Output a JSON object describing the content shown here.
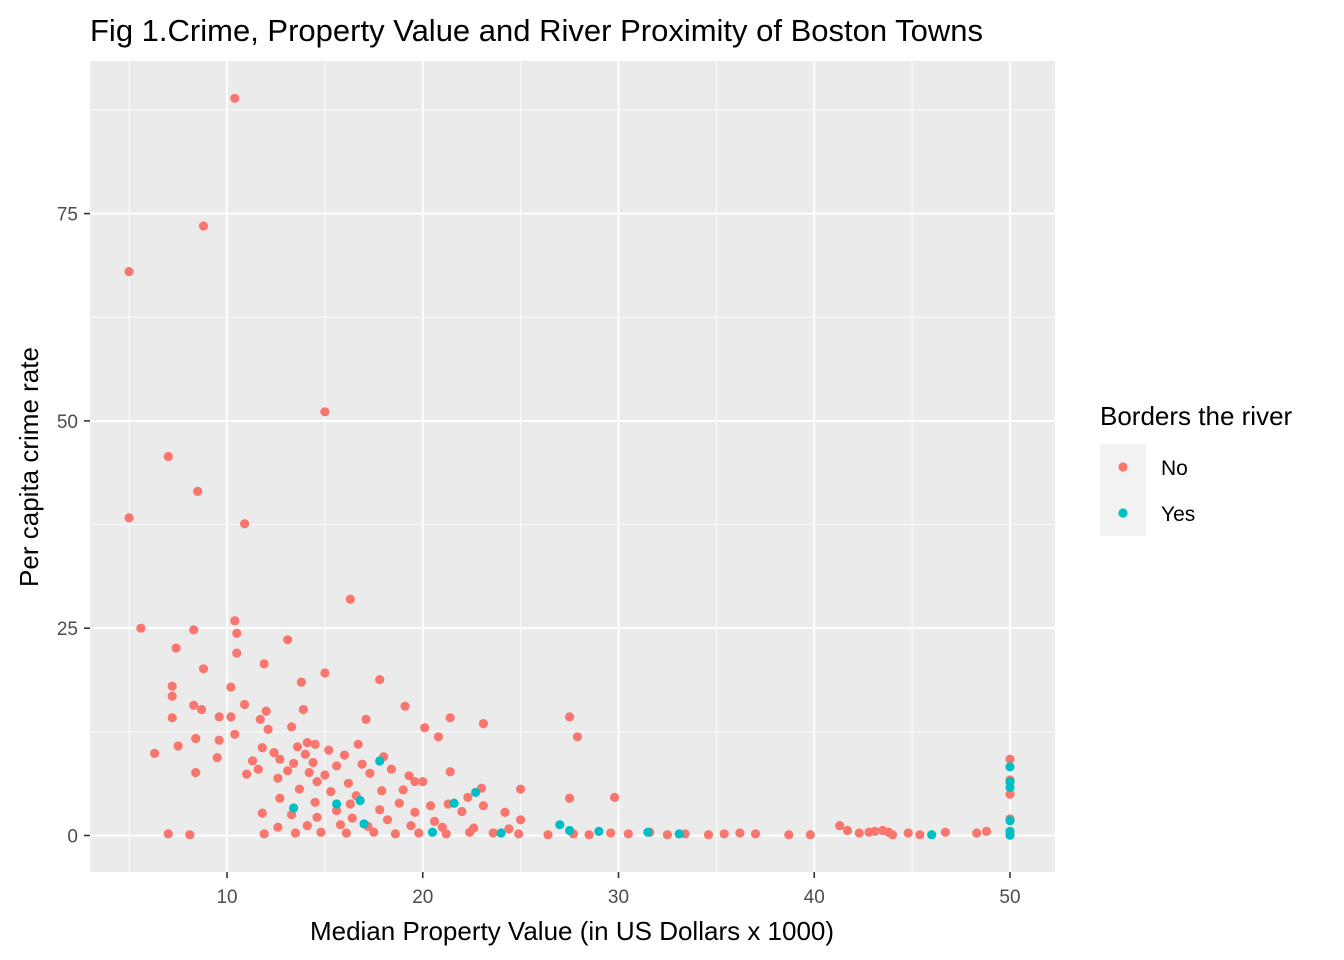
{
  "chart_data": {
    "type": "scatter",
    "title": "Fig 1.Crime, Property Value and River Proximity of Boston Towns",
    "xlabel": "Median Property Value (in US Dollars x 1000)",
    "ylabel": "Per capita crime rate",
    "xlim": [
      3.0,
      52.3
    ],
    "ylim": [
      -4.4,
      93.4
    ],
    "xticks": [
      10,
      20,
      30,
      40,
      50
    ],
    "yticks": [
      0,
      25,
      50,
      75
    ],
    "grid": true,
    "legend": {
      "title": "Borders the river",
      "placement": "right",
      "entries": [
        {
          "label": "No",
          "color": "#F8766D"
        },
        {
          "label": "Yes",
          "color": "#00BFC4"
        }
      ]
    },
    "series": [
      {
        "name": "No",
        "color": "#F8766D",
        "points": [
          [
            10.4,
            88.9
          ],
          [
            8.8,
            73.5
          ],
          [
            5.0,
            68.0
          ],
          [
            15.0,
            51.1
          ],
          [
            7.0,
            45.7
          ],
          [
            8.5,
            41.5
          ],
          [
            5.0,
            38.3
          ],
          [
            10.9,
            37.6
          ],
          [
            16.3,
            28.5
          ],
          [
            10.4,
            25.9
          ],
          [
            5.6,
            25.0
          ],
          [
            8.3,
            24.8
          ],
          [
            10.5,
            24.4
          ],
          [
            13.1,
            23.6
          ],
          [
            7.4,
            22.6
          ],
          [
            10.5,
            22.0
          ],
          [
            11.9,
            20.7
          ],
          [
            8.8,
            20.1
          ],
          [
            15.0,
            19.6
          ],
          [
            17.8,
            18.8
          ],
          [
            13.8,
            18.5
          ],
          [
            7.2,
            18.0
          ],
          [
            10.2,
            17.9
          ],
          [
            7.2,
            16.8
          ],
          [
            10.9,
            15.8
          ],
          [
            19.1,
            15.6
          ],
          [
            8.3,
            15.7
          ],
          [
            8.7,
            15.2
          ],
          [
            12.0,
            15.0
          ],
          [
            13.9,
            15.2
          ],
          [
            9.6,
            14.3
          ],
          [
            10.2,
            14.3
          ],
          [
            7.2,
            14.2
          ],
          [
            11.7,
            14.0
          ],
          [
            17.1,
            14.0
          ],
          [
            21.4,
            14.2
          ],
          [
            27.5,
            14.3
          ],
          [
            23.1,
            13.5
          ],
          [
            20.1,
            13.0
          ],
          [
            13.3,
            13.1
          ],
          [
            12.1,
            12.8
          ],
          [
            10.4,
            12.2
          ],
          [
            8.4,
            11.7
          ],
          [
            20.8,
            11.9
          ],
          [
            27.9,
            11.9
          ],
          [
            9.6,
            11.5
          ],
          [
            14.1,
            11.2
          ],
          [
            14.5,
            11.0
          ],
          [
            16.7,
            11.0
          ],
          [
            7.5,
            10.8
          ],
          [
            11.8,
            10.6
          ],
          [
            13.6,
            10.7
          ],
          [
            15.2,
            10.3
          ],
          [
            6.3,
            9.9
          ],
          [
            9.5,
            9.4
          ],
          [
            12.4,
            10.0
          ],
          [
            14.0,
            9.8
          ],
          [
            16.0,
            9.7
          ],
          [
            18.0,
            9.5
          ],
          [
            11.3,
            9.0
          ],
          [
            12.7,
            9.2
          ],
          [
            13.4,
            8.7
          ],
          [
            14.4,
            8.8
          ],
          [
            15.6,
            8.4
          ],
          [
            16.9,
            8.6
          ],
          [
            11.6,
            8.0
          ],
          [
            13.1,
            7.8
          ],
          [
            14.2,
            7.6
          ],
          [
            15.0,
            7.3
          ],
          [
            17.3,
            7.5
          ],
          [
            18.4,
            8.0
          ],
          [
            19.3,
            7.2
          ],
          [
            8.4,
            7.6
          ],
          [
            11.0,
            7.4
          ],
          [
            12.6,
            6.9
          ],
          [
            14.6,
            6.5
          ],
          [
            16.2,
            6.3
          ],
          [
            20.0,
            6.5
          ],
          [
            19.6,
            6.5
          ],
          [
            21.4,
            7.7
          ],
          [
            13.7,
            5.6
          ],
          [
            15.3,
            5.3
          ],
          [
            16.6,
            4.8
          ],
          [
            17.9,
            5.4
          ],
          [
            19.0,
            5.5
          ],
          [
            22.3,
            4.6
          ],
          [
            23.0,
            5.7
          ],
          [
            25.0,
            5.6
          ],
          [
            27.5,
            4.5
          ],
          [
            29.8,
            4.6
          ],
          [
            12.7,
            4.5
          ],
          [
            14.5,
            4.0
          ],
          [
            16.3,
            3.8
          ],
          [
            18.8,
            3.9
          ],
          [
            20.4,
            3.6
          ],
          [
            21.3,
            3.8
          ],
          [
            23.1,
            3.6
          ],
          [
            15.6,
            3.0
          ],
          [
            17.8,
            3.1
          ],
          [
            19.6,
            2.8
          ],
          [
            22.0,
            2.9
          ],
          [
            24.2,
            2.8
          ],
          [
            11.8,
            2.7
          ],
          [
            13.3,
            2.5
          ],
          [
            14.6,
            2.2
          ],
          [
            16.4,
            2.1
          ],
          [
            18.2,
            1.9
          ],
          [
            20.6,
            1.7
          ],
          [
            25.0,
            1.9
          ],
          [
            12.6,
            1.0
          ],
          [
            14.1,
            1.2
          ],
          [
            15.8,
            1.3
          ],
          [
            17.2,
            1.1
          ],
          [
            19.4,
            1.2
          ],
          [
            21.0,
            1.0
          ],
          [
            22.6,
            0.9
          ],
          [
            24.4,
            0.8
          ],
          [
            11.9,
            0.2
          ],
          [
            13.5,
            0.3
          ],
          [
            14.8,
            0.4
          ],
          [
            16.1,
            0.3
          ],
          [
            17.5,
            0.4
          ],
          [
            18.6,
            0.2
          ],
          [
            19.8,
            0.3
          ],
          [
            21.2,
            0.2
          ],
          [
            22.4,
            0.4
          ],
          [
            23.6,
            0.3
          ],
          [
            24.9,
            0.2
          ],
          [
            26.4,
            0.1
          ],
          [
            27.7,
            0.2
          ],
          [
            28.5,
            0.1
          ],
          [
            29.6,
            0.3
          ],
          [
            30.5,
            0.2
          ],
          [
            31.6,
            0.4
          ],
          [
            32.5,
            0.1
          ],
          [
            33.4,
            0.2
          ],
          [
            34.6,
            0.1
          ],
          [
            35.4,
            0.2
          ],
          [
            36.2,
            0.3
          ],
          [
            37.0,
            0.2
          ],
          [
            38.7,
            0.1
          ],
          [
            39.8,
            0.1
          ],
          [
            7.0,
            0.2
          ],
          [
            8.1,
            0.1
          ],
          [
            41.3,
            1.2
          ],
          [
            41.7,
            0.6
          ],
          [
            42.3,
            0.3
          ],
          [
            42.8,
            0.4
          ],
          [
            43.1,
            0.5
          ],
          [
            43.5,
            0.6
          ],
          [
            43.8,
            0.4
          ],
          [
            44.0,
            0.1
          ],
          [
            44.8,
            0.3
          ],
          [
            45.4,
            0.1
          ],
          [
            46.7,
            0.4
          ],
          [
            48.3,
            0.3
          ],
          [
            48.8,
            0.5
          ],
          [
            50.0,
            9.2
          ],
          [
            50.0,
            6.7
          ],
          [
            50.0,
            5.0
          ],
          [
            50.0,
            2.0
          ]
        ]
      },
      {
        "name": "Yes",
        "color": "#00BFC4",
        "points": [
          [
            17.8,
            8.98
          ],
          [
            16.8,
            4.22
          ],
          [
            15.6,
            3.8
          ],
          [
            13.4,
            3.32
          ],
          [
            22.7,
            5.2
          ],
          [
            21.6,
            3.9
          ],
          [
            17.0,
            1.4
          ],
          [
            27.0,
            1.3
          ],
          [
            27.5,
            0.6
          ],
          [
            29.0,
            0.5
          ],
          [
            31.5,
            0.4
          ],
          [
            33.1,
            0.2
          ],
          [
            46.0,
            0.1
          ],
          [
            24.0,
            0.3
          ],
          [
            20.5,
            0.4
          ],
          [
            50.0,
            8.27
          ],
          [
            50.0,
            6.5
          ],
          [
            50.0,
            5.8
          ],
          [
            50.0,
            1.8
          ],
          [
            50.0,
            0.5
          ],
          [
            50.0,
            0.05
          ]
        ]
      }
    ]
  }
}
